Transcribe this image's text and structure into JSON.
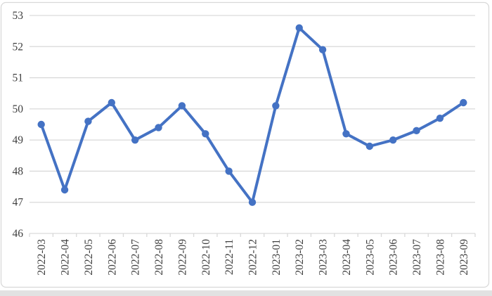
{
  "chart_data": {
    "type": "line",
    "title": "",
    "xlabel": "",
    "ylabel": "",
    "categories": [
      "2022-03",
      "2022-04",
      "2022-05",
      "2022-06",
      "2022-07",
      "2022-08",
      "2022-09",
      "2022-10",
      "2022-11",
      "2022-12",
      "2023-01",
      "2023-02",
      "2023-03",
      "2023-04",
      "2023-05",
      "2023-06",
      "2023-07",
      "2023-08",
      "2023-09"
    ],
    "values": [
      49.5,
      47.4,
      49.6,
      50.2,
      49.0,
      49.4,
      50.1,
      49.2,
      48.0,
      47.0,
      50.1,
      52.6,
      51.9,
      49.2,
      48.8,
      49.0,
      49.3,
      49.7,
      50.2
    ],
    "ylim": [
      46,
      53
    ],
    "ytick_interval": 1,
    "ytick_labels": [
      "46",
      "47",
      "48",
      "49",
      "50",
      "51",
      "52",
      "53"
    ],
    "grid": true,
    "legend": false,
    "x_labels_rotated_degrees": 90,
    "marker": "circle",
    "colors": {
      "line": "#4472C4",
      "marker": "#4472C4",
      "gridline": "#D9D9D9",
      "axis_line": "#D9D9D9",
      "tick_label": "#404040",
      "chart_border": "#D9D9D9",
      "background": "#FFFFFF",
      "bottom_strip": "#E2E2E2"
    }
  }
}
